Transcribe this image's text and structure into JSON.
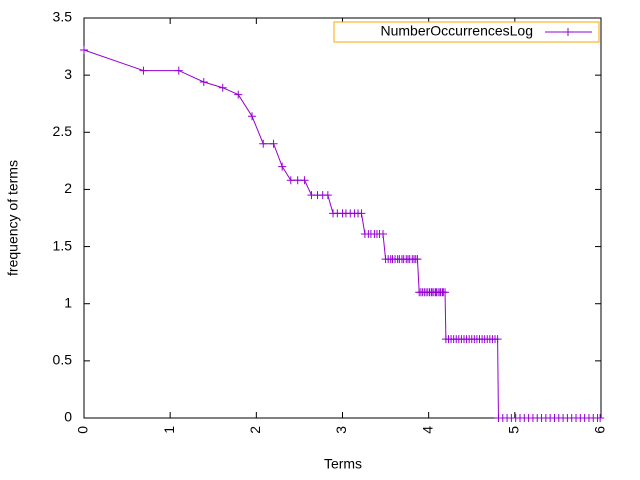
{
  "chart_data": {
    "type": "line",
    "x_label": "Terms",
    "y_label": "frequency of terms",
    "xlim": [
      0,
      6
    ],
    "xticks": [
      0,
      1,
      2,
      3,
      4,
      5,
      6
    ],
    "ylim": [
      0,
      3.5
    ],
    "yticks": [
      0,
      0.5,
      1,
      1.5,
      2,
      2.5,
      3,
      3.5
    ],
    "legend": "top-right",
    "marker": "+",
    "x": [
      0,
      0.69,
      1.1,
      1.39,
      1.61,
      1.79,
      1.95,
      2.08,
      2.2,
      2.3,
      2.4,
      2.48,
      2.56,
      2.64,
      2.71,
      2.77,
      2.83,
      2.89,
      2.94,
      3.0,
      3.04,
      3.09,
      3.14,
      3.18,
      3.22,
      3.26,
      3.3,
      3.33,
      3.37,
      3.4,
      3.43,
      3.47,
      3.5,
      3.53,
      3.56,
      3.58,
      3.61,
      3.64,
      3.66,
      3.69,
      3.71,
      3.74,
      3.76,
      3.78,
      3.81,
      3.83,
      3.85,
      3.87,
      3.89,
      3.91,
      3.93,
      3.95,
      3.97,
      3.99,
      4.01,
      4.03,
      4.04,
      4.06,
      4.08,
      4.09,
      4.11,
      4.13,
      4.14,
      4.16,
      4.17,
      4.19,
      4.2,
      4.23,
      4.26,
      4.29,
      4.32,
      4.35,
      4.38,
      4.41,
      4.44,
      4.47,
      4.5,
      4.53,
      4.56,
      4.59,
      4.62,
      4.65,
      4.68,
      4.71,
      4.74,
      4.77,
      4.8,
      4.81,
      4.86,
      4.91,
      4.96,
      5.01,
      5.06,
      5.11,
      5.16,
      5.21,
      5.26,
      5.31,
      5.36,
      5.41,
      5.46,
      5.51,
      5.56,
      5.61,
      5.66,
      5.71,
      5.76,
      5.81,
      5.86,
      5.91,
      5.96,
      5.99
    ],
    "series": [
      {
        "name": "NumberOccurrencesLog",
        "color": "#9400d3",
        "values": [
          3.22,
          3.04,
          3.04,
          2.94,
          2.89,
          2.83,
          2.64,
          2.4,
          2.4,
          2.2,
          2.08,
          2.08,
          2.08,
          1.95,
          1.95,
          1.95,
          1.95,
          1.79,
          1.79,
          1.79,
          1.79,
          1.79,
          1.79,
          1.79,
          1.79,
          1.61,
          1.61,
          1.61,
          1.61,
          1.61,
          1.61,
          1.61,
          1.39,
          1.39,
          1.39,
          1.39,
          1.39,
          1.39,
          1.39,
          1.39,
          1.39,
          1.39,
          1.39,
          1.39,
          1.39,
          1.39,
          1.39,
          1.39,
          1.1,
          1.1,
          1.1,
          1.1,
          1.1,
          1.1,
          1.1,
          1.1,
          1.1,
          1.1,
          1.1,
          1.1,
          1.1,
          1.1,
          1.1,
          1.1,
          1.1,
          1.1,
          0.69,
          0.69,
          0.69,
          0.69,
          0.69,
          0.69,
          0.69,
          0.69,
          0.69,
          0.69,
          0.69,
          0.69,
          0.69,
          0.69,
          0.69,
          0.69,
          0.69,
          0.69,
          0.69,
          0.69,
          0.69,
          0,
          0,
          0,
          0,
          0,
          0,
          0,
          0,
          0,
          0,
          0,
          0,
          0,
          0,
          0,
          0,
          0,
          0,
          0,
          0,
          0,
          0,
          0,
          0,
          0
        ]
      }
    ]
  }
}
